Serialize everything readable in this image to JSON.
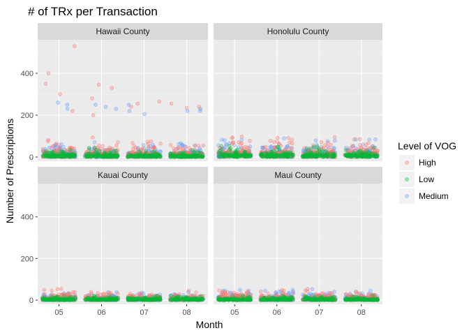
{
  "chart_data": {
    "type": "scatter",
    "title": "# of TRx per Transaction",
    "xlabel": "Month",
    "ylabel": "Number of Prescriptions",
    "categories": [
      "05",
      "06",
      "07",
      "08"
    ],
    "ylim": [
      -20,
      560
    ],
    "yticks": [
      0,
      200,
      400
    ],
    "grid": true,
    "jitter": true,
    "point_alpha": 0.3,
    "legend": {
      "title": "Level of VOG",
      "placement": "right",
      "entries": [
        {
          "name": "High",
          "color": "#F8766D"
        },
        {
          "name": "Low",
          "color": "#00BA38"
        },
        {
          "name": "Medium",
          "color": "#619CFF"
        }
      ]
    },
    "facets": [
      {
        "label": "Hawaii County",
        "series": [
          {
            "name": "High",
            "max": [
              530,
              345,
              265,
              255
            ],
            "typical": [
              60,
              50,
              40,
              40
            ],
            "outliers": [
              [
                0,
                400
              ],
              [
                0,
                530
              ],
              [
                0,
                350
              ],
              [
                0,
                300
              ],
              [
                0,
                220
              ],
              [
                1,
                345
              ],
              [
                1,
                330
              ],
              [
                1,
                280
              ],
              [
                1,
                200
              ],
              [
                2,
                265
              ],
              [
                2,
                255
              ],
              [
                2,
                240
              ],
              [
                3,
                255
              ],
              [
                3,
                240
              ],
              [
                3,
                235
              ]
            ]
          },
          {
            "name": "Low",
            "max": [
              70,
              60,
              55,
              55
            ],
            "typical": [
              25,
              25,
              20,
              20
            ]
          },
          {
            "name": "Medium",
            "max": [
              260,
              250,
              250,
              230
            ],
            "typical": [
              45,
              40,
              35,
              35
            ],
            "outliers": [
              [
                0,
                260
              ],
              [
                0,
                250
              ],
              [
                0,
                230
              ],
              [
                1,
                250
              ],
              [
                1,
                240
              ],
              [
                1,
                230
              ],
              [
                2,
                250
              ],
              [
                2,
                220
              ],
              [
                2,
                205
              ],
              [
                3,
                230
              ],
              [
                3,
                220
              ],
              [
                3,
                220
              ]
            ]
          }
        ]
      },
      {
        "label": "Honolulu County",
        "series": [
          {
            "name": "High",
            "max": [
              195,
              160,
              130,
              150
            ],
            "typical": [
              70,
              60,
              50,
              55
            ]
          },
          {
            "name": "Low",
            "max": [
              60,
              55,
              55,
              50
            ],
            "typical": [
              30,
              30,
              30,
              25
            ]
          },
          {
            "name": "Medium",
            "max": [
              150,
              140,
              120,
              130
            ],
            "typical": [
              55,
              50,
              45,
              45
            ]
          }
        ]
      },
      {
        "label": "Kauai County",
        "series": [
          {
            "name": "High",
            "max": [
              120,
              90,
              90,
              115
            ],
            "typical": [
              30,
              25,
              25,
              25
            ]
          },
          {
            "name": "Low",
            "max": [
              35,
              30,
              40,
              35
            ],
            "typical": [
              12,
              12,
              12,
              12
            ]
          },
          {
            "name": "Medium",
            "max": [
              100,
              90,
              80,
              95
            ],
            "typical": [
              25,
              22,
              22,
              22
            ]
          }
        ]
      },
      {
        "label": "Maui County",
        "series": [
          {
            "name": "High",
            "max": [
              105,
              90,
              90,
              80
            ],
            "typical": [
              35,
              30,
              30,
              30
            ]
          },
          {
            "name": "Low",
            "max": [
              40,
              35,
              30,
              30
            ],
            "typical": [
              12,
              12,
              12,
              12
            ]
          },
          {
            "name": "Medium",
            "max": [
              90,
              85,
              80,
              75
            ],
            "typical": [
              30,
              30,
              28,
              28
            ]
          }
        ]
      }
    ]
  }
}
